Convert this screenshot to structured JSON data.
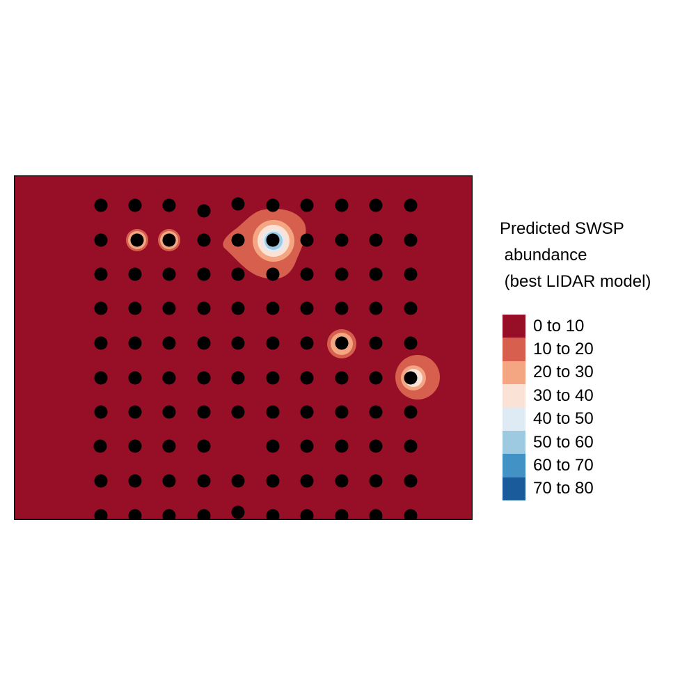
{
  "legend": {
    "title_lines": [
      "Predicted SWSP",
      " abundance",
      " (best LIDAR model)"
    ],
    "classes": [
      {
        "label": "0 to 10",
        "color": "#970f26"
      },
      {
        "label": "10 to 20",
        "color": "#d6604d"
      },
      {
        "label": "20 to 30",
        "color": "#f4a582"
      },
      {
        "label": "30 to 40",
        "color": "#fbe2d6"
      },
      {
        "label": "40 to 50",
        "color": "#deebf5"
      },
      {
        "label": "50 to 60",
        "color": "#9ecae1"
      },
      {
        "label": "60 to 70",
        "color": "#4292c6"
      },
      {
        "label": "70 to 80",
        "color": "#1a5c9b"
      }
    ]
  },
  "map": {
    "background_class": "0 to 10",
    "point_color": "#000000",
    "frame_color": "#000000"
  }
}
